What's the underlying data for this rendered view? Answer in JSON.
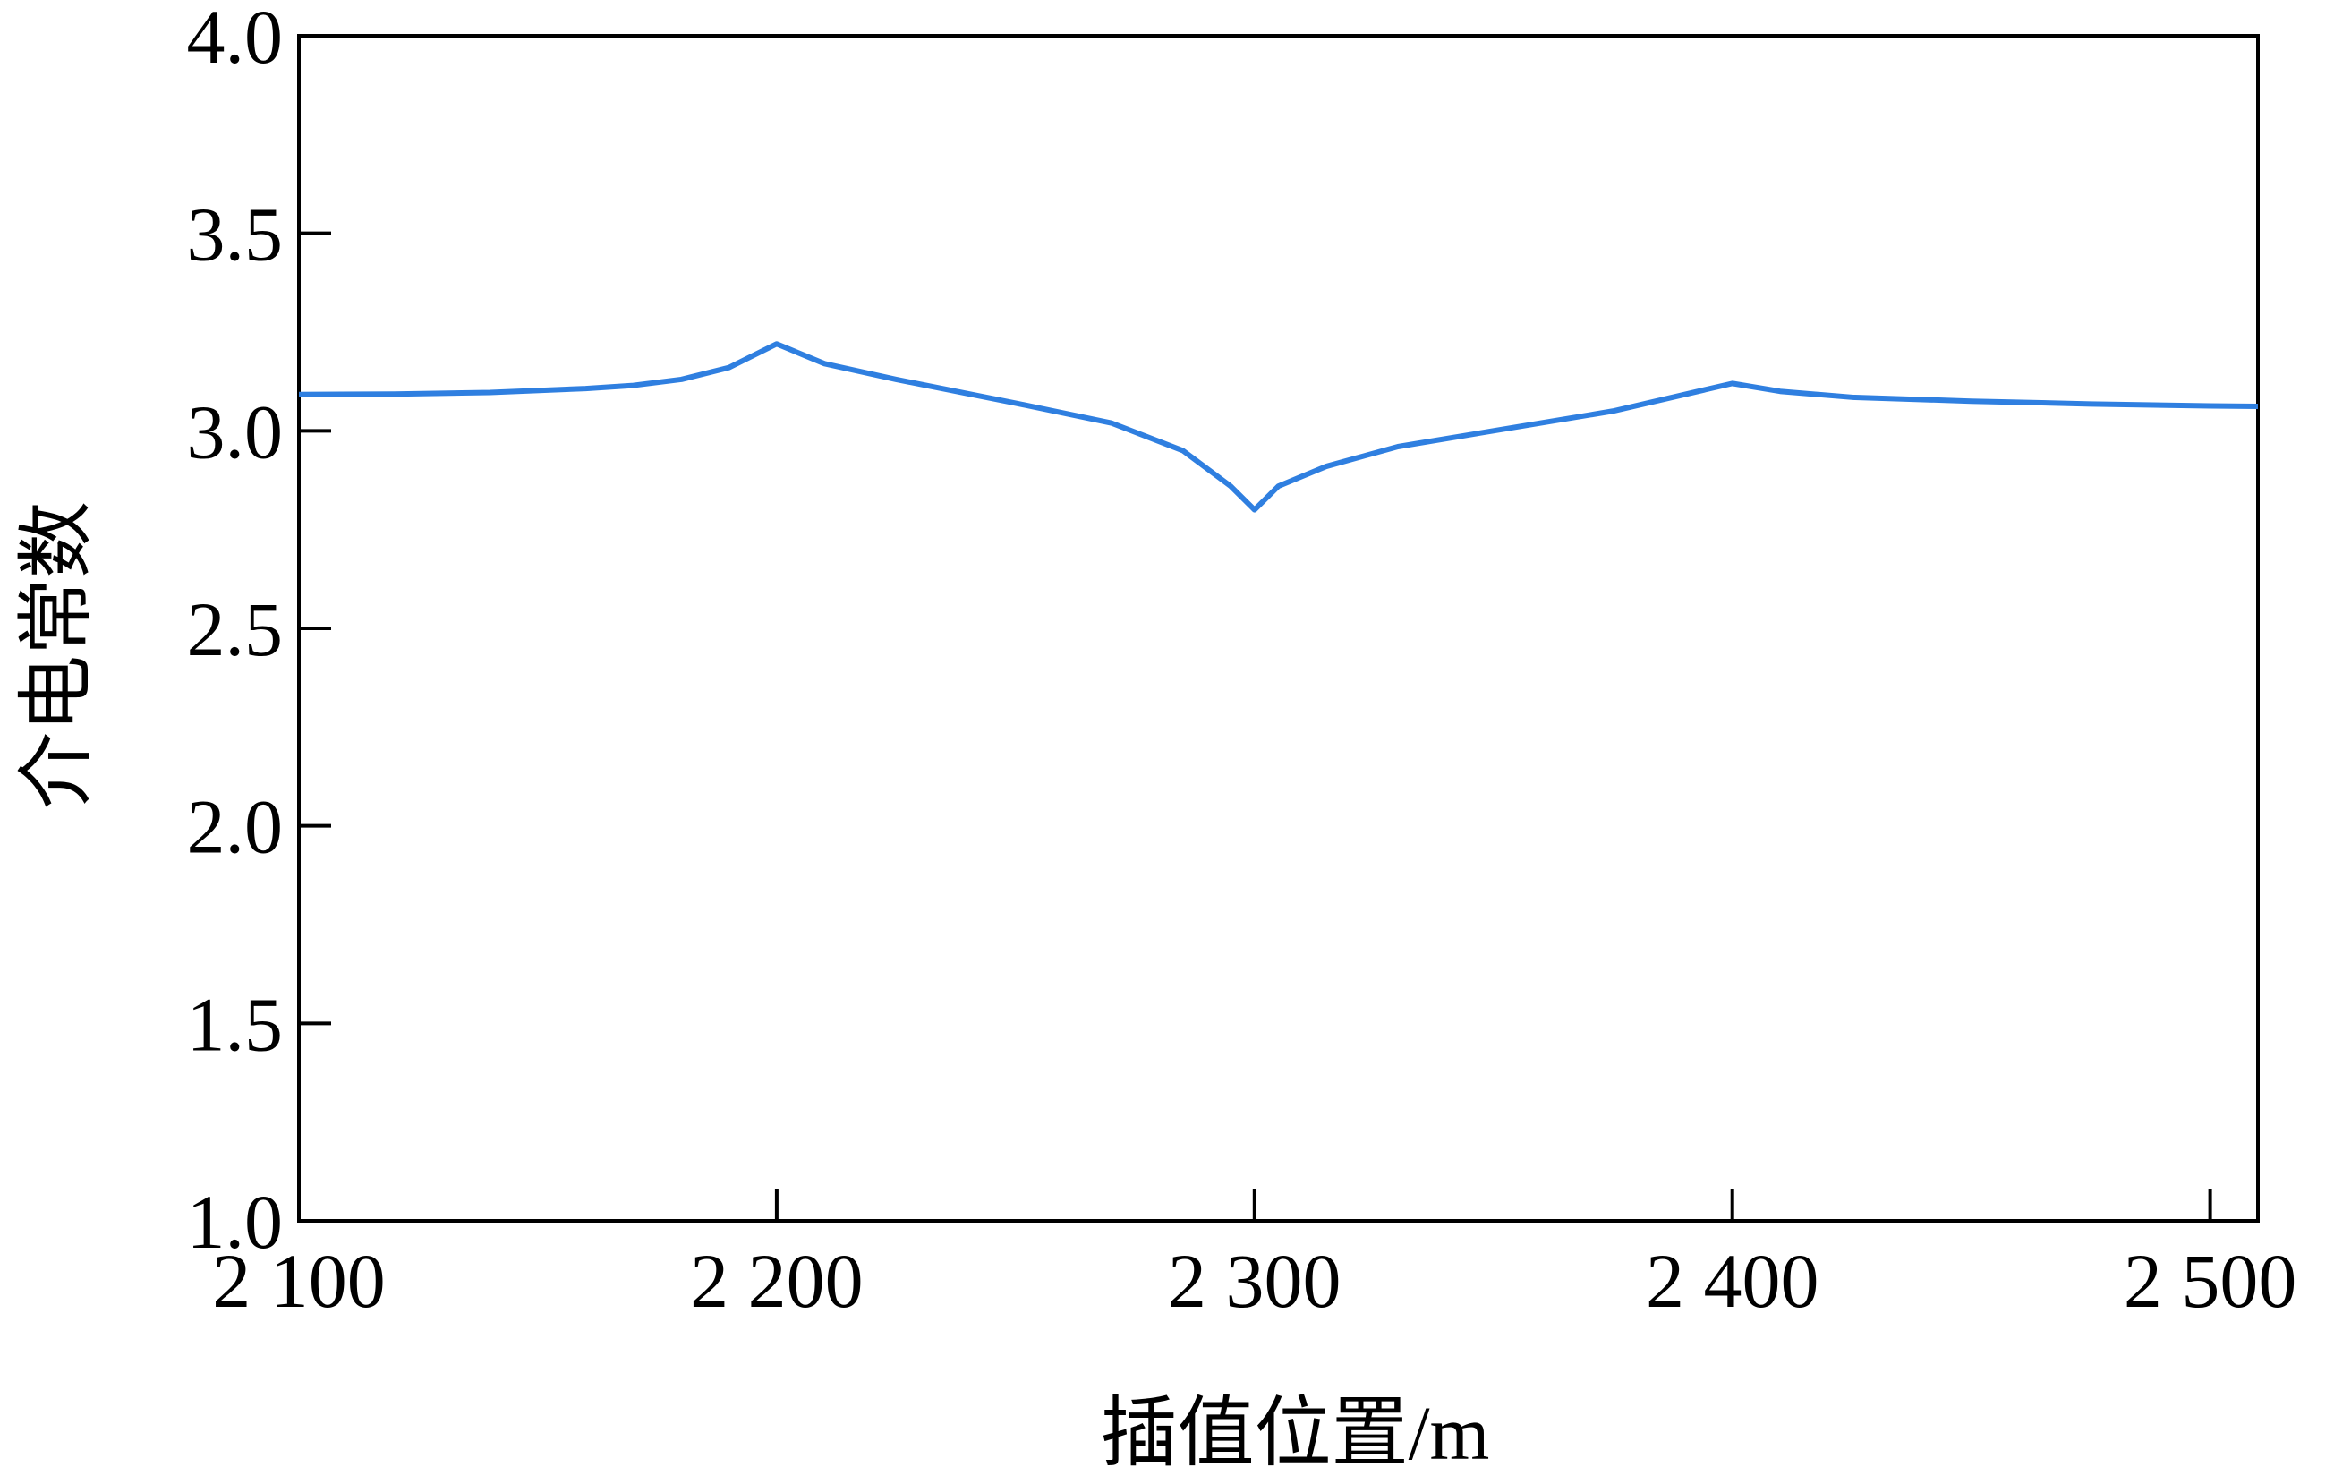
{
  "chart_data": {
    "type": "line",
    "xlabel": "插值位置/m",
    "ylabel": "介电常数",
    "x": [
      2100,
      2120,
      2140,
      2160,
      2170,
      2180,
      2190,
      2200,
      2210,
      2225,
      2250,
      2270,
      2285,
      2295,
      2300,
      2305,
      2315,
      2330,
      2350,
      2375,
      2400,
      2410,
      2425,
      2450,
      2475,
      2500,
      2510
    ],
    "series": [
      {
        "name": "介电常数",
        "color": "#2f7fe0",
        "values": [
          3.092,
          3.093,
          3.097,
          3.107,
          3.115,
          3.13,
          3.16,
          3.22,
          3.17,
          3.13,
          3.07,
          3.02,
          2.95,
          2.86,
          2.8,
          2.86,
          2.91,
          2.96,
          3.0,
          3.05,
          3.12,
          3.1,
          3.085,
          3.075,
          3.068,
          3.063,
          3.062
        ]
      }
    ],
    "xlim": [
      2100,
      2510
    ],
    "xticks": [
      {
        "value": 2100,
        "label": "2 100"
      },
      {
        "value": 2200,
        "label": "2 200"
      },
      {
        "value": 2300,
        "label": "2 300"
      },
      {
        "value": 2400,
        "label": "2 400"
      },
      {
        "value": 2500,
        "label": "2 500"
      }
    ],
    "ylim": [
      1,
      4
    ],
    "yticks": [
      {
        "value": 1,
        "label": "1.0"
      },
      1.5,
      {
        "value": 2,
        "label": "2.0"
      },
      2.5,
      {
        "value": 3,
        "label": "3.0"
      },
      3.5,
      {
        "value": 4,
        "label": "4.0"
      }
    ],
    "grid": false
  }
}
